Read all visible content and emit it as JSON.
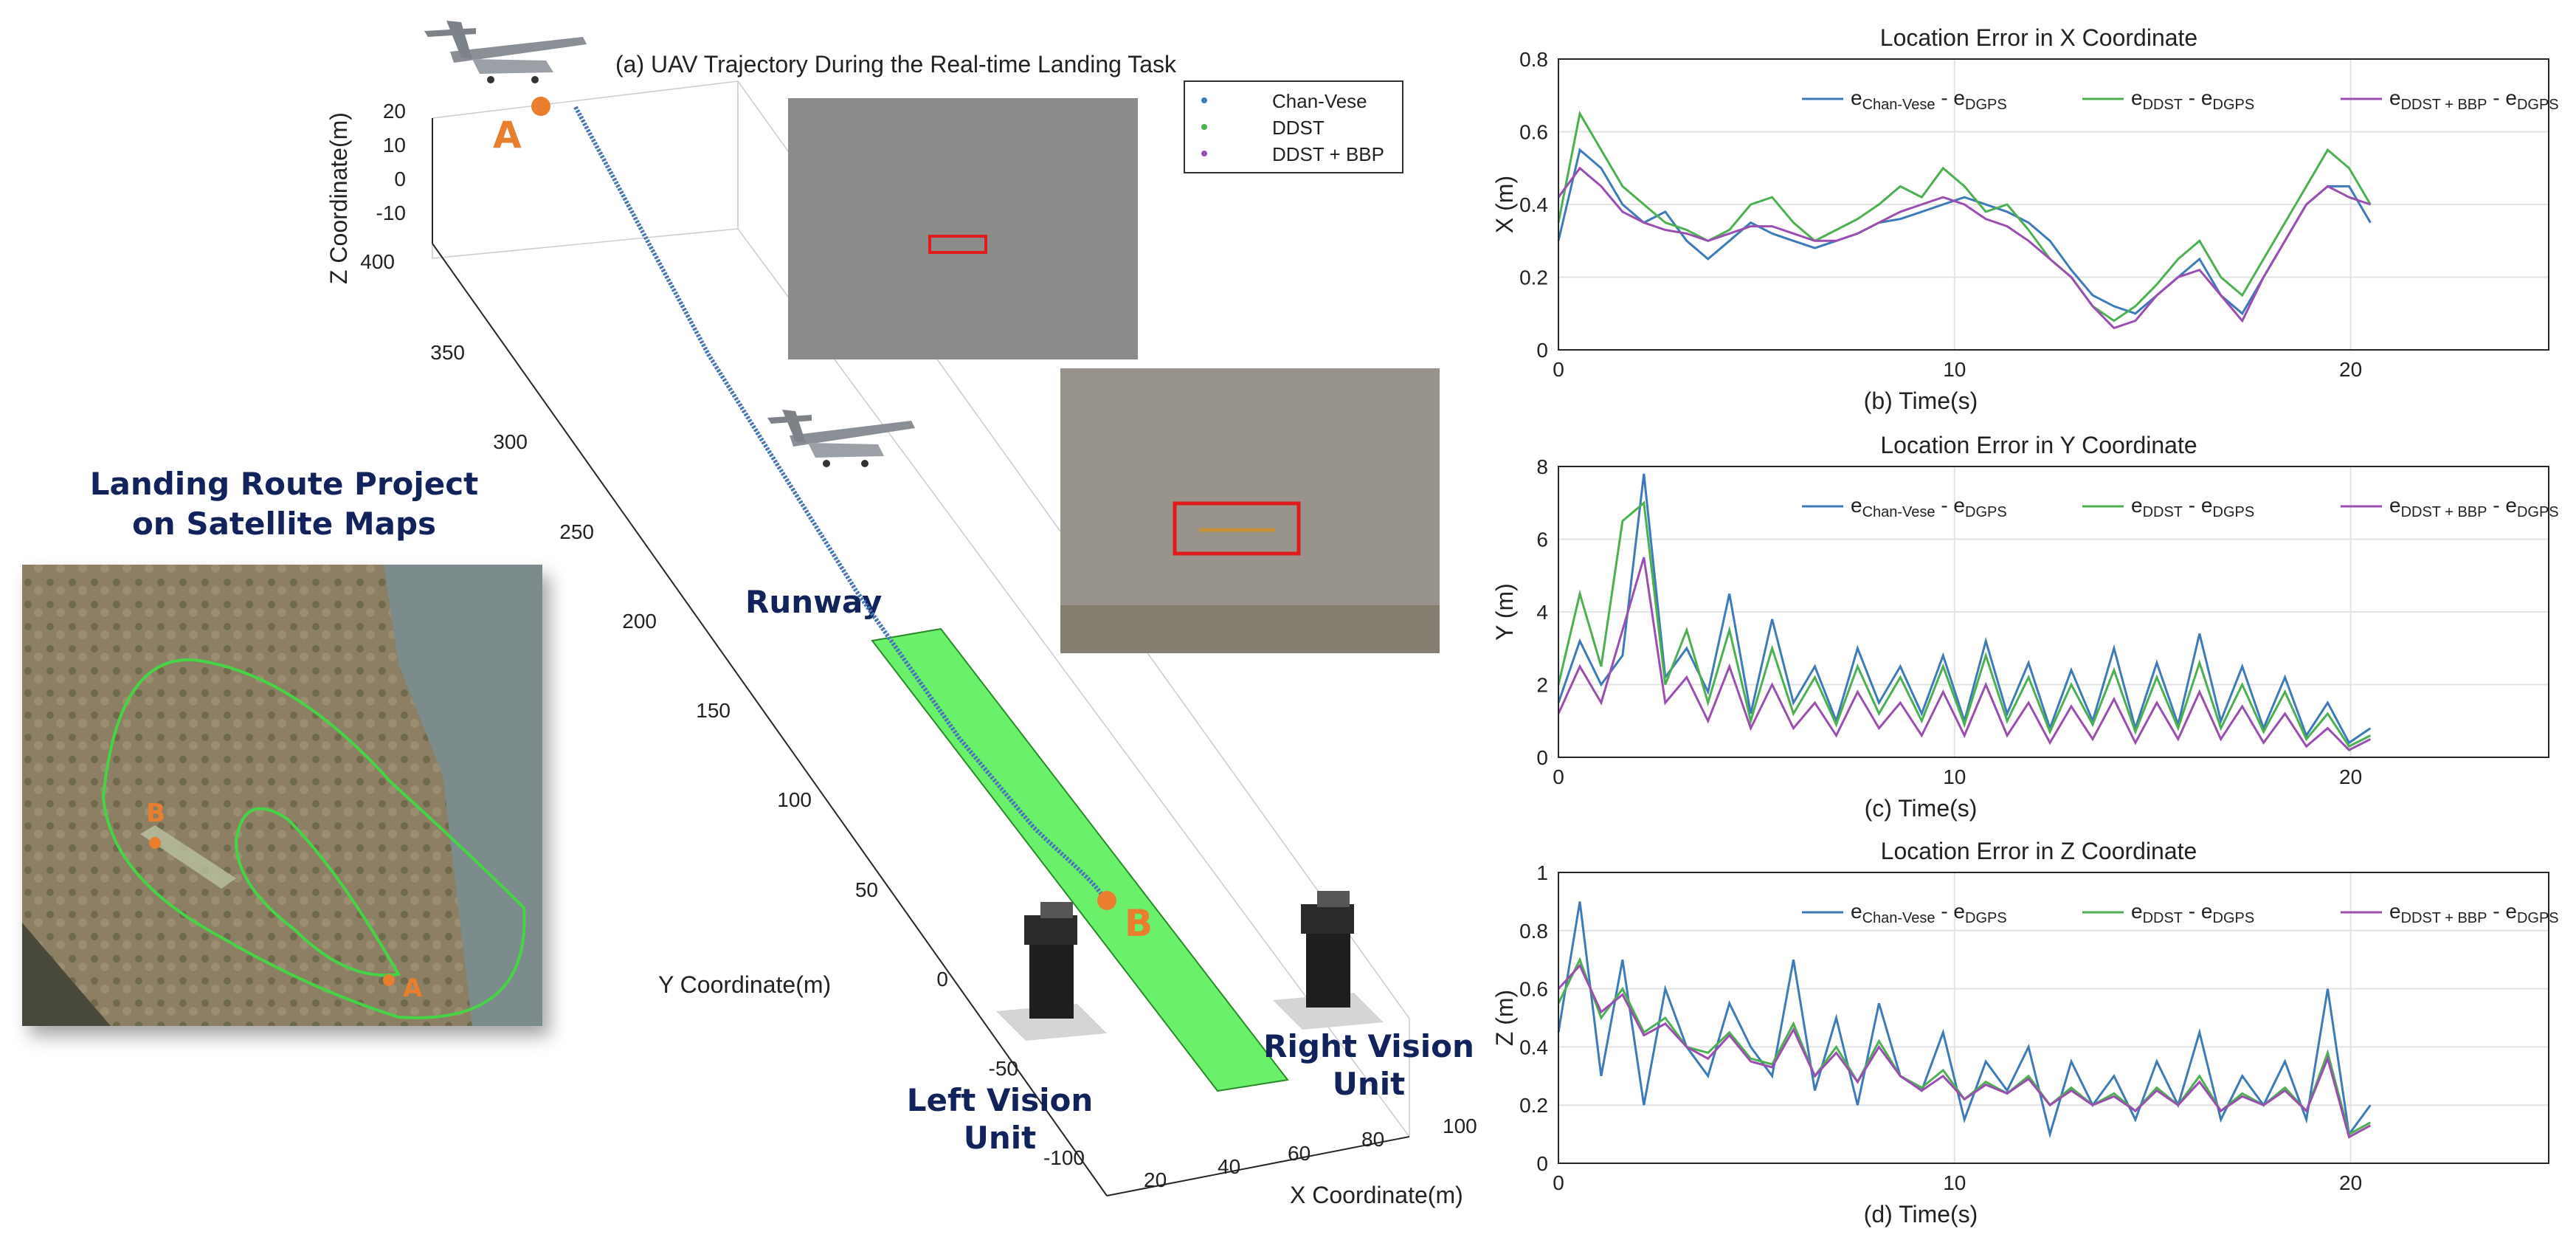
{
  "colors": {
    "blue": "#3d7ab8",
    "green": "#4caf50",
    "purple": "#9a4fb0",
    "navy": "#12235b",
    "orange": "#e87e2e",
    "runway": "#6af06a",
    "red": "#e01b1b"
  },
  "trajectory_panel": {
    "title": "(a) UAV Trajectory During the Real-time Landing Task",
    "zlabel": "Z Coordinate(m)",
    "ylabel": "Y Coordinate(m)",
    "xlabel": "X Coordinate(m)",
    "z_ticks": [
      "20",
      "10",
      "0",
      "-10"
    ],
    "y_ticks": [
      "400",
      "350",
      "300",
      "250",
      "200",
      "150",
      "100",
      "50",
      "0",
      "-50",
      "-100"
    ],
    "x_ticks": [
      "20",
      "40",
      "60",
      "80",
      "100"
    ],
    "legend": [
      "Chan-Vese",
      "DDST",
      "DDST + BBP"
    ],
    "runway_label": "Runway",
    "left_unit_label": [
      "Left Vision",
      "Unit"
    ],
    "right_unit_label": [
      "Right Vision",
      "Unit"
    ],
    "point_a": "A",
    "point_b": "B"
  },
  "satellite": {
    "title_line1": "Landing Route Project",
    "title_line2": "on Satellite Maps",
    "label_a": "A",
    "label_b": "B"
  },
  "chart_data": [
    {
      "type": "line",
      "title": "Location Error in X Coordinate",
      "xlabel": "(b) Time(s)",
      "ylabel": "X (m)",
      "xlim": [
        0,
        25
      ],
      "ylim": [
        0,
        0.8
      ],
      "xticks": [
        0,
        10,
        20
      ],
      "yticks": [
        0,
        0.2,
        0.4,
        0.6,
        0.8
      ],
      "legend_placement": "top-right",
      "grid": true,
      "series": [
        {
          "name": "Chan-Vese",
          "values": [
            0.3,
            0.55,
            0.5,
            0.4,
            0.35,
            0.38,
            0.3,
            0.25,
            0.3,
            0.35,
            0.32,
            0.3,
            0.28,
            0.3,
            0.32,
            0.35,
            0.36,
            0.38,
            0.4,
            0.42,
            0.4,
            0.38,
            0.35,
            0.3,
            0.22,
            0.15,
            0.12,
            0.1,
            0.15,
            0.2,
            0.25,
            0.15,
            0.1,
            0.2,
            0.3,
            0.4,
            0.45,
            0.45,
            0.35
          ]
        },
        {
          "name": "DDST",
          "values": [
            0.35,
            0.65,
            0.55,
            0.45,
            0.4,
            0.35,
            0.33,
            0.3,
            0.33,
            0.4,
            0.42,
            0.35,
            0.3,
            0.33,
            0.36,
            0.4,
            0.45,
            0.42,
            0.5,
            0.45,
            0.38,
            0.4,
            0.33,
            0.25,
            0.2,
            0.12,
            0.08,
            0.12,
            0.18,
            0.25,
            0.3,
            0.2,
            0.15,
            0.25,
            0.35,
            0.45,
            0.55,
            0.5,
            0.4
          ]
        },
        {
          "name": "DDST + BBP",
          "values": [
            0.42,
            0.5,
            0.45,
            0.38,
            0.35,
            0.33,
            0.32,
            0.3,
            0.32,
            0.34,
            0.34,
            0.32,
            0.3,
            0.3,
            0.32,
            0.35,
            0.38,
            0.4,
            0.42,
            0.4,
            0.36,
            0.34,
            0.3,
            0.25,
            0.2,
            0.12,
            0.06,
            0.08,
            0.15,
            0.2,
            0.22,
            0.15,
            0.08,
            0.2,
            0.3,
            0.4,
            0.45,
            0.42,
            0.4
          ]
        }
      ]
    },
    {
      "type": "line",
      "title": "Location Error in Y Coordinate",
      "xlabel": "(c) Time(s)",
      "ylabel": "Y (m)",
      "xlim": [
        0,
        25
      ],
      "ylim": [
        0,
        8
      ],
      "xticks": [
        0,
        10,
        20
      ],
      "yticks": [
        0,
        2,
        4,
        6,
        8
      ],
      "legend_placement": "top-right",
      "grid": true,
      "series": [
        {
          "name": "Chan-Vese",
          "values": [
            1.5,
            3.2,
            2.0,
            2.8,
            7.8,
            2.2,
            3.0,
            1.8,
            4.5,
            1.2,
            3.8,
            1.5,
            2.5,
            1.0,
            3.0,
            1.5,
            2.5,
            1.2,
            2.8,
            1.0,
            3.2,
            1.2,
            2.6,
            0.8,
            2.4,
            1.0,
            3.0,
            0.8,
            2.6,
            0.9,
            3.4,
            1.0,
            2.5,
            0.8,
            2.2,
            0.6,
            1.5,
            0.4,
            0.8
          ]
        },
        {
          "name": "DDST",
          "values": [
            2.0,
            4.5,
            2.5,
            6.5,
            7.0,
            2.0,
            3.5,
            1.5,
            3.5,
            1.0,
            3.0,
            1.2,
            2.2,
            0.9,
            2.5,
            1.2,
            2.2,
            1.0,
            2.5,
            0.9,
            2.8,
            1.0,
            2.2,
            0.7,
            2.0,
            0.9,
            2.4,
            0.7,
            2.2,
            0.8,
            2.6,
            0.8,
            2.0,
            0.7,
            1.8,
            0.5,
            1.2,
            0.3,
            0.6
          ]
        },
        {
          "name": "DDST + BBP",
          "values": [
            1.2,
            2.5,
            1.5,
            3.5,
            5.5,
            1.5,
            2.2,
            1.0,
            2.5,
            0.8,
            2.0,
            0.8,
            1.5,
            0.6,
            1.8,
            0.8,
            1.5,
            0.6,
            1.8,
            0.6,
            2.0,
            0.6,
            1.5,
            0.4,
            1.4,
            0.5,
            1.6,
            0.4,
            1.5,
            0.5,
            1.8,
            0.5,
            1.4,
            0.4,
            1.2,
            0.3,
            0.8,
            0.2,
            0.5
          ]
        }
      ]
    },
    {
      "type": "line",
      "title": "Location Error in Z Coordinate",
      "xlabel": "(d) Time(s)",
      "ylabel": "Z (m)",
      "xlim": [
        0,
        25
      ],
      "ylim": [
        0,
        1
      ],
      "xticks": [
        0,
        10,
        20
      ],
      "yticks": [
        0,
        0.2,
        0.4,
        0.6,
        0.8,
        1
      ],
      "legend_placement": "top-right",
      "grid": true,
      "series": [
        {
          "name": "Chan-Vese",
          "values": [
            0.45,
            0.9,
            0.3,
            0.7,
            0.2,
            0.6,
            0.4,
            0.3,
            0.55,
            0.4,
            0.3,
            0.7,
            0.25,
            0.5,
            0.2,
            0.55,
            0.3,
            0.25,
            0.45,
            0.15,
            0.35,
            0.25,
            0.4,
            0.1,
            0.35,
            0.2,
            0.3,
            0.15,
            0.35,
            0.2,
            0.45,
            0.15,
            0.3,
            0.2,
            0.35,
            0.15,
            0.6,
            0.1,
            0.2
          ]
        },
        {
          "name": "DDST",
          "values": [
            0.55,
            0.7,
            0.5,
            0.6,
            0.45,
            0.5,
            0.4,
            0.38,
            0.45,
            0.36,
            0.34,
            0.48,
            0.3,
            0.4,
            0.28,
            0.42,
            0.3,
            0.26,
            0.32,
            0.22,
            0.28,
            0.24,
            0.3,
            0.2,
            0.26,
            0.2,
            0.24,
            0.18,
            0.26,
            0.2,
            0.3,
            0.18,
            0.24,
            0.2,
            0.26,
            0.18,
            0.38,
            0.1,
            0.14
          ]
        },
        {
          "name": "DDST + BBP",
          "values": [
            0.6,
            0.68,
            0.52,
            0.58,
            0.44,
            0.48,
            0.4,
            0.36,
            0.44,
            0.35,
            0.33,
            0.46,
            0.3,
            0.38,
            0.28,
            0.4,
            0.3,
            0.25,
            0.3,
            0.22,
            0.27,
            0.24,
            0.29,
            0.2,
            0.25,
            0.2,
            0.23,
            0.18,
            0.25,
            0.2,
            0.28,
            0.18,
            0.23,
            0.2,
            0.25,
            0.18,
            0.36,
            0.09,
            0.13
          ]
        }
      ]
    }
  ]
}
